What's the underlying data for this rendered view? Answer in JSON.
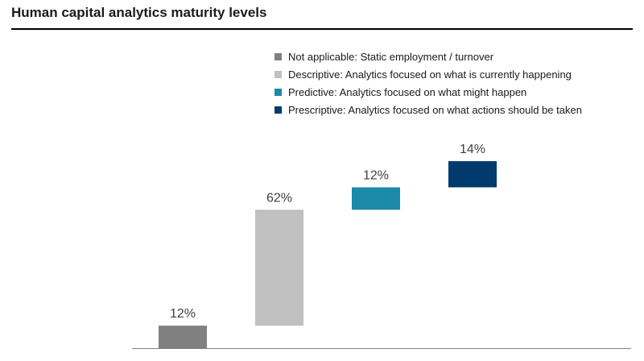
{
  "chart_data": {
    "type": "bar",
    "variant": "waterfall",
    "title": "Human capital analytics maturity levels",
    "xlabel": "",
    "ylabel": "",
    "ylim": [
      0,
      100
    ],
    "grid": false,
    "legend_position": "top-right",
    "categories": [
      "Not applicable: Static employment / turnover",
      "Descriptive: Analytics focused on what is currently happening",
      "Predictive: Analytics focused on what might happen",
      "Prescriptive: Analytics focused on what actions should be taken"
    ],
    "values": [
      12,
      62,
      12,
      14
    ],
    "labels": [
      "12%",
      "62%",
      "12%",
      "14%"
    ],
    "colors": [
      "#808080",
      "#c0c0c0",
      "#1a8aa8",
      "#003a6e"
    ]
  }
}
